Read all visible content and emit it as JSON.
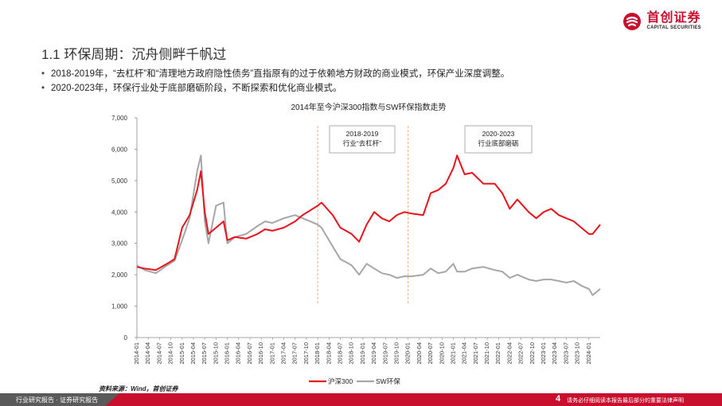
{
  "brand": {
    "name_cn": "首创证券",
    "name_en": "CAPITAL SECURITIES",
    "color": "#c8102e"
  },
  "slide": {
    "title": "1.1 环保周期：沉舟侧畔千帆过",
    "bullets": [
      "2018-2019年，“去杠杆”和“清理地方政府隐性债务”直指原有的过于依赖地方财政的商业模式，环保产业深度调整。",
      "2020-2023年，环保行业处于底部磨砺阶段，不断探索和优化商业模式。"
    ],
    "source": "资料来源：Wind，首创证券"
  },
  "footer": {
    "left_text": "行业研究报告 · 证券研究报告",
    "page_number": "4",
    "disclaimer": "请务必仔细阅读本报告最后部分的重要法律声明"
  },
  "chart_data": {
    "type": "line",
    "title": "2014年至今沪深300指数与SW环保指数走势",
    "ylim": [
      0,
      7000
    ],
    "yticks": [
      0,
      1000,
      2000,
      3000,
      4000,
      5000,
      6000,
      7000
    ],
    "ytick_labels": [
      "0",
      "1,000",
      "2,000",
      "3,000",
      "4,000",
      "5,000",
      "6,000",
      "7,000"
    ],
    "x_ticks": [
      "2014-01",
      "2014-04",
      "2014-07",
      "2014-10",
      "2015-01",
      "2015-04",
      "2015-07",
      "2015-10",
      "2016-01",
      "2016-04",
      "2016-07",
      "2016-10",
      "2017-01",
      "2017-04",
      "2017-07",
      "2017-10",
      "2018-01",
      "2018-04",
      "2018-07",
      "2018-10",
      "2019-01",
      "2019-04",
      "2019-07",
      "2019-10",
      "2020-01",
      "2020-04",
      "2020-07",
      "2020-10",
      "2021-01",
      "2021-04",
      "2021-07",
      "2021-10",
      "2022-01",
      "2022-04",
      "2022-07",
      "2022-10",
      "2023-01",
      "2023-04",
      "2023-07",
      "2023-10",
      "2024-01"
    ],
    "x": [
      "2014-01",
      "2014-03",
      "2014-06",
      "2014-09",
      "2014-11",
      "2015-01",
      "2015-03",
      "2015-05",
      "2015-06",
      "2015-07",
      "2015-08",
      "2015-10",
      "2015-12",
      "2016-01",
      "2016-03",
      "2016-06",
      "2016-09",
      "2016-11",
      "2017-01",
      "2017-04",
      "2017-07",
      "2017-09",
      "2017-11",
      "2018-01",
      "2018-02",
      "2018-05",
      "2018-07",
      "2018-10",
      "2018-12",
      "2019-02",
      "2019-04",
      "2019-06",
      "2019-08",
      "2019-10",
      "2019-12",
      "2020-02",
      "2020-05",
      "2020-07",
      "2020-09",
      "2020-11",
      "2021-01",
      "2021-02",
      "2021-04",
      "2021-06",
      "2021-09",
      "2021-12",
      "2022-02",
      "2022-04",
      "2022-06",
      "2022-09",
      "2022-11",
      "2023-01",
      "2023-03",
      "2023-05",
      "2023-07",
      "2023-09",
      "2023-11",
      "2024-01",
      "2024-02",
      "2024-04"
    ],
    "series": [
      {
        "name": "沪深300",
        "color": "#e8141c",
        "values": [
          2250,
          2200,
          2150,
          2350,
          2500,
          3500,
          3900,
          4700,
          5300,
          4000,
          3300,
          3500,
          3700,
          3100,
          3200,
          3150,
          3300,
          3450,
          3400,
          3500,
          3700,
          3900,
          4050,
          4200,
          4300,
          3900,
          3500,
          3300,
          3050,
          3600,
          4000,
          3800,
          3700,
          3900,
          4000,
          3950,
          3900,
          4600,
          4700,
          4900,
          5400,
          5800,
          5200,
          5250,
          4900,
          4900,
          4600,
          4100,
          4400,
          4000,
          3800,
          4000,
          4100,
          3900,
          3800,
          3700,
          3500,
          3300,
          3300,
          3600
        ]
      },
      {
        "name": "SW环保",
        "color": "#a6a6a6",
        "values": [
          2300,
          2150,
          2050,
          2300,
          2450,
          3100,
          3800,
          5300,
          5800,
          3700,
          3000,
          4200,
          4300,
          3000,
          3200,
          3300,
          3550,
          3700,
          3650,
          3800,
          3900,
          3800,
          3700,
          3600,
          3500,
          2900,
          2500,
          2300,
          2000,
          2350,
          2200,
          2050,
          2000,
          1900,
          1950,
          1950,
          2000,
          2200,
          2050,
          2100,
          2350,
          2100,
          2100,
          2200,
          2250,
          2150,
          2100,
          1900,
          2000,
          1850,
          1800,
          1850,
          1850,
          1800,
          1750,
          1800,
          1650,
          1550,
          1350,
          1550
        ]
      }
    ],
    "annotations": [
      {
        "lines": [
          "2018-2019",
          "行业“去杠杆”"
        ],
        "from": "2018-01",
        "to": "2020-01"
      },
      {
        "lines": [
          "2020-2023",
          "行业底部磨砺"
        ]
      }
    ],
    "legend": {
      "position": "bottom"
    }
  }
}
